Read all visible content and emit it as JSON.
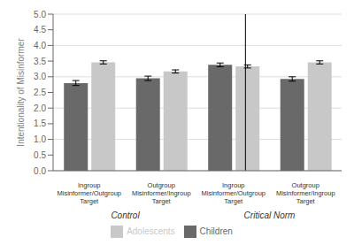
{
  "chart_data": {
    "type": "bar",
    "categories": [
      "Ingroup\nMisinformer/Outgroup\nTarget",
      "Outgroup\nMisinformer/Ingroup\nTarget",
      "Ingroup\nMisinformer/Outgroup\nTarget",
      "Outgroup\nMisinformer/Ingroup\nTarget"
    ],
    "series": [
      {
        "name": "Children",
        "color": "#696969",
        "values": [
          2.8,
          2.95,
          3.38,
          2.93
        ],
        "errors": [
          0.08,
          0.07,
          0.06,
          0.07
        ]
      },
      {
        "name": "Adolescents",
        "color": "#c8c8c8",
        "values": [
          3.46,
          3.17,
          3.33,
          3.46
        ],
        "errors": [
          0.05,
          0.05,
          0.05,
          0.05
        ]
      }
    ],
    "ylabel": "Intentionality of Misinformer",
    "ylim": [
      0,
      5
    ],
    "yticks": [
      {
        "value": 0,
        "label": "0.0"
      },
      {
        "value": 0.5,
        "label": "0.5"
      },
      {
        "value": 1,
        "label": "1.0"
      },
      {
        "value": 1.5,
        "label": "1.5"
      },
      {
        "value": 2,
        "label": "2.0"
      },
      {
        "value": 2.5,
        "label": "2.5"
      },
      {
        "value": 3,
        "label": "3.0"
      },
      {
        "value": 3.5,
        "label": "3.5"
      },
      {
        "value": 4,
        "label": "4.0"
      },
      {
        "value": 4.5,
        "label": "4.5"
      },
      {
        "value": 5,
        "label": "5.0"
      }
    ],
    "annotations": [
      "Control",
      "Critical Norm"
    ],
    "grid": true,
    "legend": "bottom"
  }
}
